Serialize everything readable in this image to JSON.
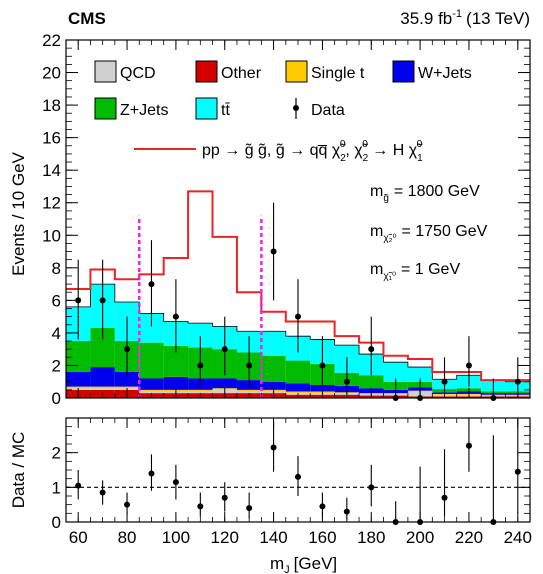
{
  "chart_data": [
    {
      "type": "bar",
      "stacked": true,
      "header_left": "CMS",
      "header_right": {
        "lumi": "35.9 fb",
        "sup": "-1",
        "energy": "(13 TeV)"
      },
      "ylabel": "Events / 10 GeV",
      "ylim": [
        0,
        22
      ],
      "yticks": [
        0,
        2,
        4,
        6,
        8,
        10,
        12,
        14,
        16,
        18,
        20,
        22
      ],
      "xlim": [
        55,
        245
      ],
      "x_bin_edges": [
        55,
        65,
        75,
        85,
        95,
        105,
        115,
        125,
        135,
        145,
        155,
        165,
        175,
        185,
        195,
        205,
        215,
        225,
        235,
        245
      ],
      "series": [
        {
          "name": "Other",
          "color": "#d40000",
          "values": [
            0.5,
            0.5,
            0.5,
            0.3,
            0.3,
            0.3,
            0.3,
            0.3,
            0.3,
            0.2,
            0.2,
            0.2,
            0.15,
            0.15,
            0.1,
            0.1,
            0.1,
            0.1,
            0.1
          ]
        },
        {
          "name": "QCD",
          "color": "#d0d0d0",
          "values": [
            0.1,
            0.1,
            0.1,
            0.1,
            0.1,
            0.1,
            0.2,
            0.1,
            0.1,
            0.1,
            0.1,
            0.1,
            0.1,
            0.1,
            0.3,
            0.1,
            0.1,
            0.05,
            0.05
          ]
        },
        {
          "name": "Single t",
          "color": "#ffcc00",
          "values": [
            0.1,
            0.1,
            0.1,
            0.1,
            0.1,
            0.1,
            0.1,
            0.1,
            0.1,
            0.1,
            0.1,
            0.05,
            0.05,
            0.05,
            0.05,
            0.05,
            0.05,
            0.05,
            0.05
          ]
        },
        {
          "name": "W+Jets",
          "color": "#0000ee",
          "values": [
            0.9,
            1.2,
            0.9,
            0.7,
            0.8,
            0.7,
            0.6,
            0.6,
            0.5,
            0.5,
            0.4,
            0.4,
            0.3,
            0.2,
            0.2,
            0.1,
            0.15,
            0.1,
            0.1
          ]
        },
        {
          "name": "Z+Jets",
          "color": "#00bb00",
          "values": [
            1.9,
            2.4,
            1.9,
            2.2,
            1.9,
            1.9,
            1.8,
            1.7,
            1.6,
            1.4,
            1.3,
            0.8,
            0.8,
            0.5,
            0.35,
            0.2,
            0.2,
            0.1,
            0.1
          ]
        },
        {
          "name": "tt̄",
          "color": "#00ffff",
          "values": [
            2.1,
            2.7,
            2.4,
            1.8,
            1.5,
            1.5,
            1.4,
            1.3,
            1.5,
            1.5,
            1.5,
            1.7,
            1.3,
            1.2,
            0.9,
            0.6,
            0.8,
            0.7,
            0.6
          ]
        }
      ],
      "signal": {
        "name": "pp → g̃ g̃, g̃ → qq̅ χ̃",
        "color": "#ee2222",
        "values": [
          6.7,
          7.9,
          7.3,
          7.6,
          8.6,
          12.7,
          9.9,
          6.5,
          5.3,
          4.7,
          4.7,
          3.8,
          3.4,
          2.6,
          2.4,
          1.6,
          1.6,
          1.1,
          1.1
        ]
      },
      "data": {
        "name": "Data",
        "x": [
          60,
          70,
          80,
          90,
          100,
          110,
          120,
          130,
          140,
          150,
          160,
          170,
          180,
          190,
          200,
          210,
          220,
          230,
          240
        ],
        "y": [
          6,
          6,
          3,
          7,
          5,
          2,
          3,
          2,
          9,
          5,
          2,
          1,
          3,
          0,
          0,
          1,
          2,
          0,
          1
        ],
        "err_up": [
          2.5,
          2.5,
          2.0,
          2.7,
          2.3,
          1.8,
          2.0,
          1.8,
          3.0,
          2.3,
          1.8,
          1.5,
          2.0,
          1.2,
          1.2,
          1.5,
          1.8,
          1.2,
          1.5
        ],
        "err_down": [
          2.4,
          2.4,
          1.6,
          2.6,
          2.2,
          1.3,
          1.6,
          1.3,
          3.0,
          2.2,
          1.3,
          0.8,
          1.6,
          0,
          0,
          0.8,
          1.3,
          0,
          0.8
        ]
      },
      "window_lines": [
        85,
        135
      ],
      "window_color": "#ee22ee",
      "masses": [
        {
          "label": "m",
          "sub": "g̃",
          "value": "= 1800 GeV"
        },
        {
          "label": "m",
          "sub": "χ̃₂⁰",
          "value": "= 1750 GeV"
        },
        {
          "label": "m",
          "sub": "χ̃₁⁰",
          "value": "= 1 GeV"
        }
      ],
      "legend_position": "top"
    },
    {
      "type": "scatter",
      "ylabel": "Data / MC",
      "ylim": [
        0,
        3
      ],
      "yticks": [
        0,
        1,
        2
      ],
      "xlim": [
        55,
        245
      ],
      "xticks": [
        60,
        80,
        100,
        120,
        140,
        160,
        180,
        200,
        220,
        240
      ],
      "xlabel": "m",
      "xlabel_sub": "J",
      "xlabel_unit": "[GeV]",
      "reference_line": 1,
      "x": [
        60,
        70,
        80,
        90,
        100,
        110,
        120,
        130,
        140,
        150,
        160,
        170,
        180,
        190,
        200,
        210,
        220,
        230,
        240
      ],
      "y": [
        1.05,
        0.85,
        0.5,
        1.4,
        1.15,
        0.45,
        0.7,
        0.4,
        2.15,
        1.3,
        0.45,
        0.3,
        1.0,
        0.0,
        0.0,
        0.7,
        2.2,
        0.0,
        1.45
      ],
      "err_up": [
        0.45,
        0.35,
        0.35,
        0.55,
        0.5,
        0.4,
        0.45,
        0.45,
        0.75,
        0.6,
        0.4,
        0.4,
        0.65,
        0.6,
        1.6,
        1.4,
        0.8,
        2.5,
        1.5
      ],
      "err_down": [
        0.4,
        0.35,
        0.3,
        0.5,
        0.5,
        0.3,
        0.4,
        0.3,
        0.7,
        0.55,
        0.3,
        0.25,
        0.55,
        0,
        0,
        0.55,
        0.75,
        0,
        1.2
      ]
    }
  ]
}
